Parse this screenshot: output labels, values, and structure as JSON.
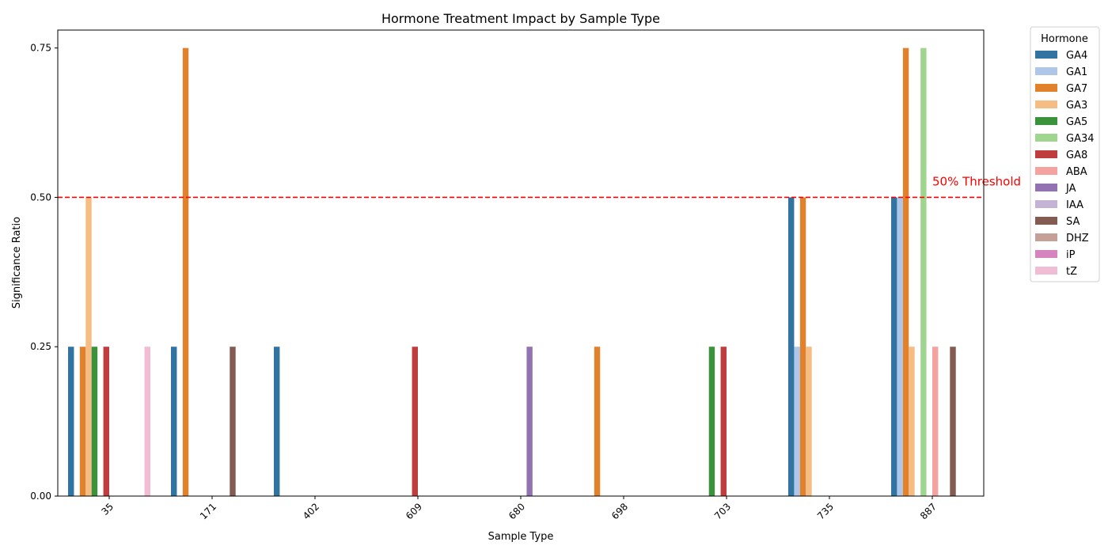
{
  "chart_data": {
    "type": "bar",
    "title": "Hormone Treatment Impact by Sample Type",
    "xlabel": "Sample Type",
    "ylabel": "Significance Ratio",
    "ylim": [
      0,
      0.78
    ],
    "yticks": [
      "0.00",
      "0.25",
      "0.50",
      "0.75"
    ],
    "categories": [
      "35",
      "171",
      "402",
      "609",
      "680",
      "698",
      "703",
      "735",
      "887"
    ],
    "legend_title": "Hormone",
    "legend_position": "outside-right",
    "threshold": {
      "value": 0.5,
      "label": "50% Threshold",
      "color": "#ff0000",
      "style": "dashed"
    },
    "series": [
      {
        "name": "GA4",
        "color": "#3274a1",
        "values": [
          0.25,
          0.25,
          0.25,
          0,
          0,
          0,
          0,
          0.5,
          0.5
        ]
      },
      {
        "name": "GA1",
        "color": "#aec7e8",
        "values": [
          0,
          0,
          0,
          0,
          0,
          0,
          0,
          0.25,
          0.5
        ]
      },
      {
        "name": "GA7",
        "color": "#e1812c",
        "values": [
          0.25,
          0.75,
          0,
          0,
          0,
          0.25,
          0,
          0.5,
          0.75
        ]
      },
      {
        "name": "GA3",
        "color": "#f5bc84",
        "values": [
          0.5,
          0,
          0,
          0,
          0,
          0,
          0,
          0.25,
          0.25
        ]
      },
      {
        "name": "GA5",
        "color": "#3a923a",
        "values": [
          0.25,
          0,
          0,
          0,
          0,
          0,
          0.25,
          0,
          0
        ]
      },
      {
        "name": "GA34",
        "color": "#9ed68f",
        "values": [
          0,
          0,
          0,
          0,
          0,
          0,
          0,
          0,
          0.75
        ]
      },
      {
        "name": "GA8",
        "color": "#c03d3e",
        "values": [
          0.25,
          0,
          0,
          0.25,
          0,
          0,
          0.25,
          0,
          0
        ]
      },
      {
        "name": "ABA",
        "color": "#f4a3a0",
        "values": [
          0,
          0,
          0,
          0,
          0,
          0,
          0,
          0,
          0.25
        ]
      },
      {
        "name": "JA",
        "color": "#9372b2",
        "values": [
          0,
          0,
          0,
          0,
          0.25,
          0,
          0,
          0,
          0
        ]
      },
      {
        "name": "IAA",
        "color": "#c5b3d6",
        "values": [
          0,
          0,
          0,
          0,
          0,
          0,
          0,
          0,
          0
        ]
      },
      {
        "name": "SA",
        "color": "#845b53",
        "values": [
          0,
          0.25,
          0,
          0,
          0,
          0,
          0,
          0,
          0.25
        ]
      },
      {
        "name": "DHZ",
        "color": "#c4a097",
        "values": [
          0,
          0,
          0,
          0,
          0,
          0,
          0,
          0,
          0
        ]
      },
      {
        "name": "iP",
        "color": "#d684bd",
        "values": [
          0,
          0,
          0,
          0,
          0,
          0,
          0,
          0,
          0
        ]
      },
      {
        "name": "tZ",
        "color": "#f1bdd5",
        "values": [
          0.25,
          0,
          0,
          0,
          0,
          0,
          0,
          0,
          0
        ]
      }
    ]
  }
}
